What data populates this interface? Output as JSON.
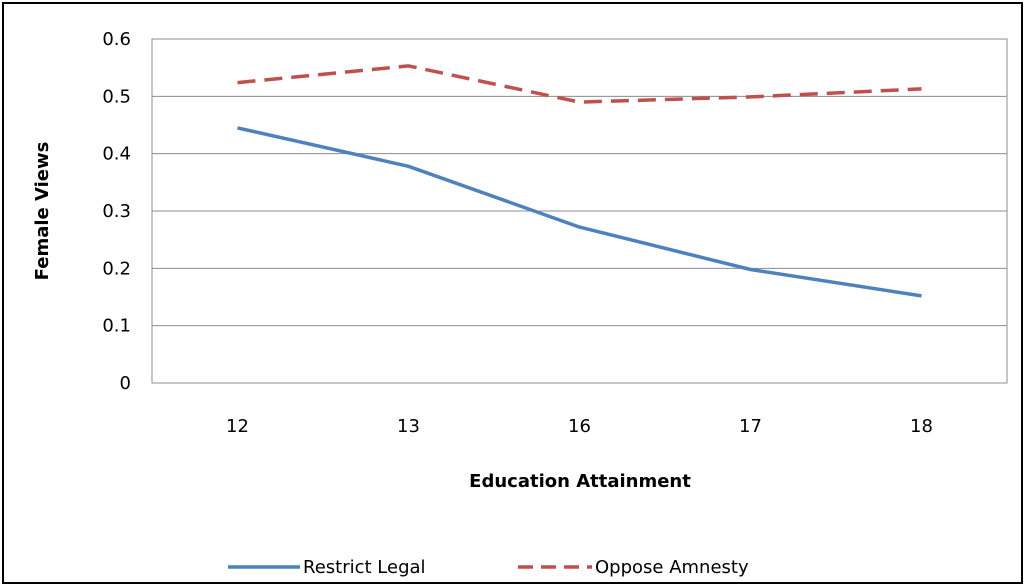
{
  "chart_data": {
    "type": "line",
    "title": "",
    "xlabel": "Education Attainment",
    "ylabel": "Female Views",
    "categories": [
      "12",
      "13",
      "16",
      "17",
      "18"
    ],
    "ylim": [
      0,
      0.6
    ],
    "yticks": [
      "0",
      "0.1",
      "0.2",
      "0.3",
      "0.4",
      "0.5",
      "0.6"
    ],
    "grid": "horizontal",
    "legend_position": "bottom",
    "series": [
      {
        "name": "Restrict Legal",
        "values": [
          0.445,
          0.378,
          0.272,
          0.198,
          0.152
        ],
        "color": "#4F81BD",
        "style": "solid"
      },
      {
        "name": "Oppose Amnesty",
        "values": [
          0.524,
          0.553,
          0.49,
          0.499,
          0.513
        ],
        "color": "#C0504D",
        "style": "dashed"
      }
    ]
  }
}
